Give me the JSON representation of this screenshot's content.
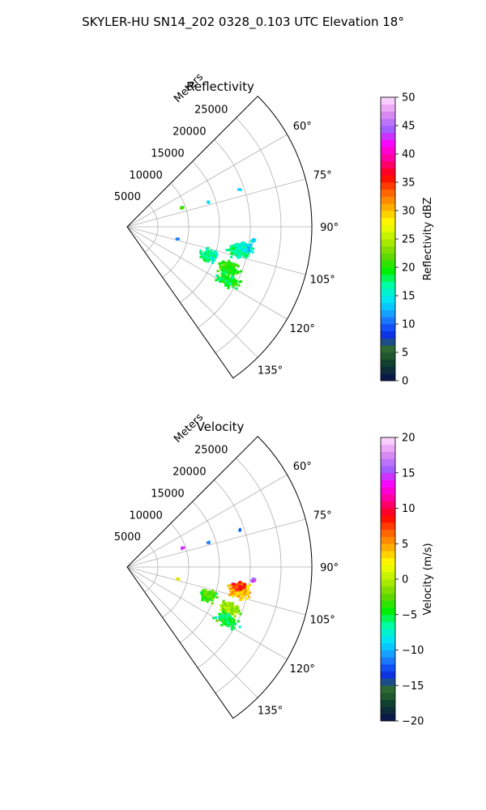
{
  "figure_title": "SKYLER-HU  SN14_202  0328_0.103 UTC Elevation 18°",
  "chart_data": [
    {
      "type": "polar-sector-scatter",
      "title": "Reflectivity",
      "range_label": "Meters",
      "range_ticks": [
        5000,
        10000,
        15000,
        20000,
        25000
      ],
      "range_max": 30000,
      "angle_ticks": [
        "60°",
        "75°",
        "90°",
        "105°",
        "120°",
        "135°"
      ],
      "angle_tick_values": [
        60,
        75,
        90,
        105,
        120,
        135
      ],
      "angle_range": [
        45,
        145
      ],
      "grid": true,
      "colorbar": {
        "label": "Reflectivity dBZ",
        "ticks": [
          "0",
          "5",
          "10",
          "15",
          "20",
          "25",
          "30",
          "35",
          "40",
          "45",
          "50"
        ],
        "range": [
          0,
          50
        ],
        "stops": [
          "#0b0f4f",
          "#0c3b2f",
          "#2f6b2f",
          "#0a2ef0",
          "#1e88ff",
          "#00e0ff",
          "#00ffb0",
          "#00f000",
          "#6ad600",
          "#b8f000",
          "#ffff00",
          "#ffb000",
          "#ff6000",
          "#ff0000",
          "#ff0090",
          "#ff00ff",
          "#a060ff",
          "#e090f0",
          "#ffe0ff"
        ]
      },
      "echo_clusters": [
        {
          "az": 109.5,
          "r": 14000,
          "n": 140,
          "ds": 1700,
          "da": 5,
          "value": 17
        },
        {
          "az": 102,
          "r": 18500,
          "n": 170,
          "ds": 2200,
          "da": 5,
          "value": 17
        },
        {
          "az": 100,
          "r": 19500,
          "n": 80,
          "ds": 1800,
          "da": 3,
          "value": 15
        },
        {
          "az": 112,
          "r": 18000,
          "n": 150,
          "ds": 2200,
          "da": 4,
          "value": 20
        },
        {
          "az": 118,
          "r": 18500,
          "n": 140,
          "ds": 2500,
          "da": 4,
          "value": 19
        },
        {
          "az": 96,
          "r": 20500,
          "n": 12,
          "ds": 500,
          "da": 1,
          "value": 14
        },
        {
          "az": 103.5,
          "r": 8500,
          "n": 4,
          "ds": 300,
          "da": 1,
          "value": 11
        },
        {
          "az": 71,
          "r": 9500,
          "n": 6,
          "ds": 400,
          "da": 1,
          "value": 21
        },
        {
          "az": 73,
          "r": 13800,
          "n": 5,
          "ds": 400,
          "da": 1,
          "value": 14
        },
        {
          "az": 71.5,
          "r": 19200,
          "n": 3,
          "ds": 300,
          "da": 1,
          "value": 13
        }
      ]
    },
    {
      "type": "polar-sector-scatter",
      "title": "Velocity",
      "range_label": "Meters",
      "range_ticks": [
        5000,
        10000,
        15000,
        20000,
        25000
      ],
      "range_max": 30000,
      "angle_ticks": [
        "60°",
        "75°",
        "90°",
        "105°",
        "120°",
        "135°"
      ],
      "angle_tick_values": [
        60,
        75,
        90,
        105,
        120,
        135
      ],
      "angle_range": [
        45,
        145
      ],
      "grid": true,
      "colorbar": {
        "label": "Velocity (m/s)",
        "ticks": [
          "−20",
          "−15",
          "−10",
          "−5",
          "0",
          "5",
          "10",
          "15",
          "20"
        ],
        "range": [
          -20,
          20
        ],
        "stops": [
          "#0b0f4f",
          "#0c3b2f",
          "#2f6b2f",
          "#0a2ef0",
          "#1e88ff",
          "#00e0ff",
          "#00ffb0",
          "#00f000",
          "#6ad600",
          "#b8f000",
          "#ffff00",
          "#ffb000",
          "#ff6000",
          "#ff0000",
          "#ff0090",
          "#ff00ff",
          "#a060ff",
          "#e090f0",
          "#ffe0ff"
        ]
      },
      "echo_clusters": [
        {
          "az": 109.5,
          "r": 14000,
          "n": 140,
          "ds": 1700,
          "da": 5,
          "value": -3
        },
        {
          "az": 102,
          "r": 18500,
          "n": 170,
          "ds": 2200,
          "da": 5,
          "value": 4
        },
        {
          "az": 99.5,
          "r": 18500,
          "n": 80,
          "ds": 1600,
          "da": 3,
          "value": 8
        },
        {
          "az": 112,
          "r": 18000,
          "n": 150,
          "ds": 2200,
          "da": 4,
          "value": -1
        },
        {
          "az": 118,
          "r": 18500,
          "n": 140,
          "ds": 2500,
          "da": 4,
          "value": -5
        },
        {
          "az": 96,
          "r": 20500,
          "n": 12,
          "ds": 500,
          "da": 1,
          "value": 15
        },
        {
          "az": 103.5,
          "r": 8500,
          "n": 4,
          "ds": 300,
          "da": 1,
          "value": 2
        },
        {
          "az": 71,
          "r": 9500,
          "n": 6,
          "ds": 400,
          "da": 1,
          "value": 16
        },
        {
          "az": 73,
          "r": 13800,
          "n": 5,
          "ds": 400,
          "da": 1,
          "value": -12
        },
        {
          "az": 71.5,
          "r": 19200,
          "n": 3,
          "ds": 300,
          "da": 1,
          "value": -11
        }
      ]
    }
  ]
}
